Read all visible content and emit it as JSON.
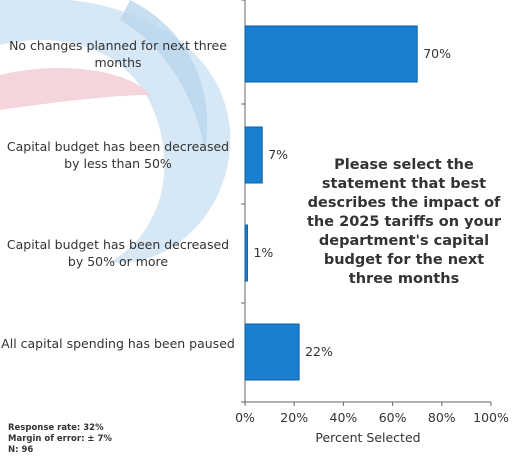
{
  "chart_data": {
    "type": "bar",
    "orientation": "horizontal",
    "categories": [
      "No changes planned for next three months",
      "Capital budget has been decreased by less than 50%",
      "Capital budget has been decreased by 50% or more",
      "All capital spending has been paused"
    ],
    "values": [
      70,
      7,
      1,
      22
    ],
    "value_labels": [
      "70%",
      "7%",
      "1%",
      "22%"
    ],
    "xlabel": "Percent Selected",
    "ylabel": "",
    "xlim": [
      0,
      100
    ],
    "xticks": [
      "0%",
      "20%",
      "40%",
      "60%",
      "80%",
      "100%"
    ],
    "grid": false,
    "legend": "none",
    "bar_color": "#1a7fd1",
    "bar_edge_color": "#0e5fa3"
  },
  "annotation": "Please select the statement that best describes the impact of the 2025 tariffs on your department's capital budget for the next three months",
  "footnotes": {
    "response_rate": "Response rate: 32%",
    "margin_of_error": "Margin of error: ± 7%",
    "n": "N: 96"
  },
  "decor_colors": {
    "swirl_blue": "#cfe3f3",
    "swirl_red": "#f3d0d8"
  }
}
